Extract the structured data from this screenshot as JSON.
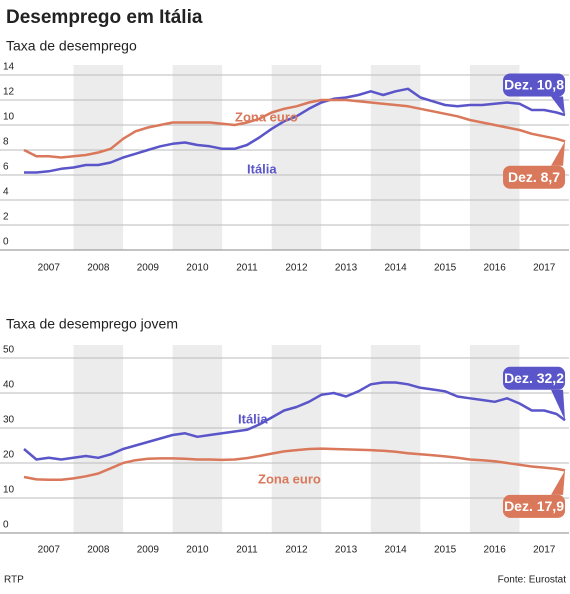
{
  "title": "Desemprego em Itália",
  "source": "Fonte: Eurostat",
  "credit": "RTP",
  "chart_data": [
    {
      "type": "line",
      "title": "Taxa de desemprego",
      "x": [
        2007,
        2007.25,
        2007.5,
        2007.75,
        2008,
        2008.25,
        2008.5,
        2008.75,
        2009,
        2009.25,
        2009.5,
        2009.75,
        2010,
        2010.25,
        2010.5,
        2010.75,
        2011,
        2011.25,
        2011.5,
        2011.75,
        2012,
        2012.25,
        2012.5,
        2012.75,
        2013,
        2013.25,
        2013.5,
        2013.75,
        2014,
        2014.25,
        2014.5,
        2014.75,
        2015,
        2015.25,
        2015.5,
        2015.75,
        2016,
        2016.25,
        2016.5,
        2016.75,
        2017,
        2017.25,
        2017.5,
        2017.75,
        2017.92
      ],
      "xlim": [
        2007,
        2018
      ],
      "xticks": [
        2007,
        2008,
        2009,
        2010,
        2011,
        2012,
        2013,
        2014,
        2015,
        2016,
        2017
      ],
      "ylim": [
        0,
        14
      ],
      "yticks": [
        0,
        2,
        4,
        6,
        8,
        10,
        12,
        14
      ],
      "grid": true,
      "series": [
        {
          "name": "Itália",
          "color": "#5a55c8",
          "end_label": "Dez. 10,8",
          "values": [
            6.2,
            6.2,
            6.3,
            6.5,
            6.6,
            6.8,
            6.8,
            7.0,
            7.4,
            7.7,
            8.0,
            8.3,
            8.5,
            8.6,
            8.4,
            8.3,
            8.1,
            8.1,
            8.4,
            9.0,
            9.7,
            10.3,
            10.7,
            11.3,
            11.8,
            12.1,
            12.2,
            12.4,
            12.7,
            12.4,
            12.7,
            12.9,
            12.2,
            11.9,
            11.6,
            11.5,
            11.6,
            11.6,
            11.7,
            11.8,
            11.7,
            11.2,
            11.2,
            11.0,
            10.8
          ]
        },
        {
          "name": "Zona euro",
          "color": "#d9785a",
          "end_label": "Dez. 8,7",
          "values": [
            8.0,
            7.5,
            7.5,
            7.4,
            7.5,
            7.6,
            7.8,
            8.1,
            8.9,
            9.5,
            9.8,
            10.0,
            10.2,
            10.2,
            10.2,
            10.2,
            10.1,
            10.0,
            10.2,
            10.5,
            11.0,
            11.3,
            11.5,
            11.8,
            12.0,
            12.0,
            12.0,
            11.9,
            11.8,
            11.7,
            11.6,
            11.5,
            11.3,
            11.1,
            10.9,
            10.7,
            10.4,
            10.2,
            10.0,
            9.8,
            9.6,
            9.3,
            9.1,
            8.9,
            8.7
          ]
        }
      ]
    },
    {
      "type": "line",
      "title": "Taxa de desemprego jovem",
      "x": [
        2007,
        2007.25,
        2007.5,
        2007.75,
        2008,
        2008.25,
        2008.5,
        2008.75,
        2009,
        2009.25,
        2009.5,
        2009.75,
        2010,
        2010.25,
        2010.5,
        2010.75,
        2011,
        2011.25,
        2011.5,
        2011.75,
        2012,
        2012.25,
        2012.5,
        2012.75,
        2013,
        2013.25,
        2013.5,
        2013.75,
        2014,
        2014.25,
        2014.5,
        2014.75,
        2015,
        2015.25,
        2015.5,
        2015.75,
        2016,
        2016.25,
        2016.5,
        2016.75,
        2017,
        2017.25,
        2017.5,
        2017.75,
        2017.92
      ],
      "xlim": [
        2007,
        2018
      ],
      "xticks": [
        2007,
        2008,
        2009,
        2010,
        2011,
        2012,
        2013,
        2014,
        2015,
        2016,
        2017
      ],
      "ylim": [
        0,
        50
      ],
      "yticks": [
        0,
        10,
        20,
        30,
        40,
        50
      ],
      "grid": true,
      "series": [
        {
          "name": "Itália",
          "color": "#5a55c8",
          "end_label": "Dez. 32,2",
          "values": [
            24,
            21,
            21.5,
            21,
            21.5,
            22,
            21.5,
            22.5,
            24,
            25,
            26,
            27,
            28,
            28.5,
            27.5,
            28,
            28.5,
            29,
            29.5,
            31,
            33,
            35,
            36,
            37.5,
            39.5,
            40,
            39,
            40.5,
            42.5,
            43,
            43,
            42.5,
            41.5,
            41,
            40.5,
            39,
            38.5,
            38,
            37.5,
            38.5,
            37,
            35,
            35,
            34,
            32.2
          ]
        },
        {
          "name": "Zona euro",
          "color": "#d9785a",
          "end_label": "Dez. 17,9",
          "values": [
            16,
            15.3,
            15.2,
            15.2,
            15.6,
            16.2,
            17,
            18.5,
            20,
            20.8,
            21.2,
            21.3,
            21.3,
            21.2,
            21.0,
            21.0,
            20.9,
            21.0,
            21.4,
            22,
            22.7,
            23.3,
            23.7,
            24.0,
            24.1,
            24.0,
            23.9,
            23.8,
            23.7,
            23.5,
            23.2,
            22.8,
            22.5,
            22.2,
            21.9,
            21.5,
            21.0,
            20.8,
            20.5,
            20.0,
            19.5,
            19.0,
            18.7,
            18.3,
            17.9
          ]
        }
      ]
    }
  ]
}
